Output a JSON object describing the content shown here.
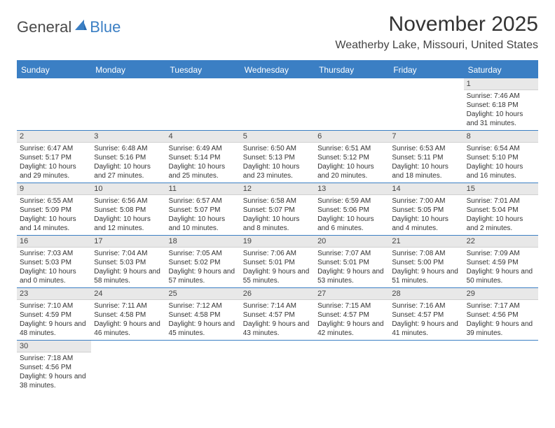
{
  "logo": {
    "text1": "General",
    "text2": "Blue"
  },
  "title": "November 2025",
  "location": "Weatherby Lake, Missouri, United States",
  "colors": {
    "accent": "#3b7fc4",
    "dayHeaderBg": "#e8e8e8"
  },
  "dow": [
    "Sunday",
    "Monday",
    "Tuesday",
    "Wednesday",
    "Thursday",
    "Friday",
    "Saturday"
  ],
  "weeks": [
    [
      null,
      null,
      null,
      null,
      null,
      null,
      {
        "n": "1",
        "sr": "Sunrise: 7:46 AM",
        "ss": "Sunset: 6:18 PM",
        "dl": "Daylight: 10 hours and 31 minutes."
      }
    ],
    [
      {
        "n": "2",
        "sr": "Sunrise: 6:47 AM",
        "ss": "Sunset: 5:17 PM",
        "dl": "Daylight: 10 hours and 29 minutes."
      },
      {
        "n": "3",
        "sr": "Sunrise: 6:48 AM",
        "ss": "Sunset: 5:16 PM",
        "dl": "Daylight: 10 hours and 27 minutes."
      },
      {
        "n": "4",
        "sr": "Sunrise: 6:49 AM",
        "ss": "Sunset: 5:14 PM",
        "dl": "Daylight: 10 hours and 25 minutes."
      },
      {
        "n": "5",
        "sr": "Sunrise: 6:50 AM",
        "ss": "Sunset: 5:13 PM",
        "dl": "Daylight: 10 hours and 23 minutes."
      },
      {
        "n": "6",
        "sr": "Sunrise: 6:51 AM",
        "ss": "Sunset: 5:12 PM",
        "dl": "Daylight: 10 hours and 20 minutes."
      },
      {
        "n": "7",
        "sr": "Sunrise: 6:53 AM",
        "ss": "Sunset: 5:11 PM",
        "dl": "Daylight: 10 hours and 18 minutes."
      },
      {
        "n": "8",
        "sr": "Sunrise: 6:54 AM",
        "ss": "Sunset: 5:10 PM",
        "dl": "Daylight: 10 hours and 16 minutes."
      }
    ],
    [
      {
        "n": "9",
        "sr": "Sunrise: 6:55 AM",
        "ss": "Sunset: 5:09 PM",
        "dl": "Daylight: 10 hours and 14 minutes."
      },
      {
        "n": "10",
        "sr": "Sunrise: 6:56 AM",
        "ss": "Sunset: 5:08 PM",
        "dl": "Daylight: 10 hours and 12 minutes."
      },
      {
        "n": "11",
        "sr": "Sunrise: 6:57 AM",
        "ss": "Sunset: 5:07 PM",
        "dl": "Daylight: 10 hours and 10 minutes."
      },
      {
        "n": "12",
        "sr": "Sunrise: 6:58 AM",
        "ss": "Sunset: 5:07 PM",
        "dl": "Daylight: 10 hours and 8 minutes."
      },
      {
        "n": "13",
        "sr": "Sunrise: 6:59 AM",
        "ss": "Sunset: 5:06 PM",
        "dl": "Daylight: 10 hours and 6 minutes."
      },
      {
        "n": "14",
        "sr": "Sunrise: 7:00 AM",
        "ss": "Sunset: 5:05 PM",
        "dl": "Daylight: 10 hours and 4 minutes."
      },
      {
        "n": "15",
        "sr": "Sunrise: 7:01 AM",
        "ss": "Sunset: 5:04 PM",
        "dl": "Daylight: 10 hours and 2 minutes."
      }
    ],
    [
      {
        "n": "16",
        "sr": "Sunrise: 7:03 AM",
        "ss": "Sunset: 5:03 PM",
        "dl": "Daylight: 10 hours and 0 minutes."
      },
      {
        "n": "17",
        "sr": "Sunrise: 7:04 AM",
        "ss": "Sunset: 5:03 PM",
        "dl": "Daylight: 9 hours and 58 minutes."
      },
      {
        "n": "18",
        "sr": "Sunrise: 7:05 AM",
        "ss": "Sunset: 5:02 PM",
        "dl": "Daylight: 9 hours and 57 minutes."
      },
      {
        "n": "19",
        "sr": "Sunrise: 7:06 AM",
        "ss": "Sunset: 5:01 PM",
        "dl": "Daylight: 9 hours and 55 minutes."
      },
      {
        "n": "20",
        "sr": "Sunrise: 7:07 AM",
        "ss": "Sunset: 5:01 PM",
        "dl": "Daylight: 9 hours and 53 minutes."
      },
      {
        "n": "21",
        "sr": "Sunrise: 7:08 AM",
        "ss": "Sunset: 5:00 PM",
        "dl": "Daylight: 9 hours and 51 minutes."
      },
      {
        "n": "22",
        "sr": "Sunrise: 7:09 AM",
        "ss": "Sunset: 4:59 PM",
        "dl": "Daylight: 9 hours and 50 minutes."
      }
    ],
    [
      {
        "n": "23",
        "sr": "Sunrise: 7:10 AM",
        "ss": "Sunset: 4:59 PM",
        "dl": "Daylight: 9 hours and 48 minutes."
      },
      {
        "n": "24",
        "sr": "Sunrise: 7:11 AM",
        "ss": "Sunset: 4:58 PM",
        "dl": "Daylight: 9 hours and 46 minutes."
      },
      {
        "n": "25",
        "sr": "Sunrise: 7:12 AM",
        "ss": "Sunset: 4:58 PM",
        "dl": "Daylight: 9 hours and 45 minutes."
      },
      {
        "n": "26",
        "sr": "Sunrise: 7:14 AM",
        "ss": "Sunset: 4:57 PM",
        "dl": "Daylight: 9 hours and 43 minutes."
      },
      {
        "n": "27",
        "sr": "Sunrise: 7:15 AM",
        "ss": "Sunset: 4:57 PM",
        "dl": "Daylight: 9 hours and 42 minutes."
      },
      {
        "n": "28",
        "sr": "Sunrise: 7:16 AM",
        "ss": "Sunset: 4:57 PM",
        "dl": "Daylight: 9 hours and 41 minutes."
      },
      {
        "n": "29",
        "sr": "Sunrise: 7:17 AM",
        "ss": "Sunset: 4:56 PM",
        "dl": "Daylight: 9 hours and 39 minutes."
      }
    ],
    [
      {
        "n": "30",
        "sr": "Sunrise: 7:18 AM",
        "ss": "Sunset: 4:56 PM",
        "dl": "Daylight: 9 hours and 38 minutes."
      },
      null,
      null,
      null,
      null,
      null,
      null
    ]
  ]
}
